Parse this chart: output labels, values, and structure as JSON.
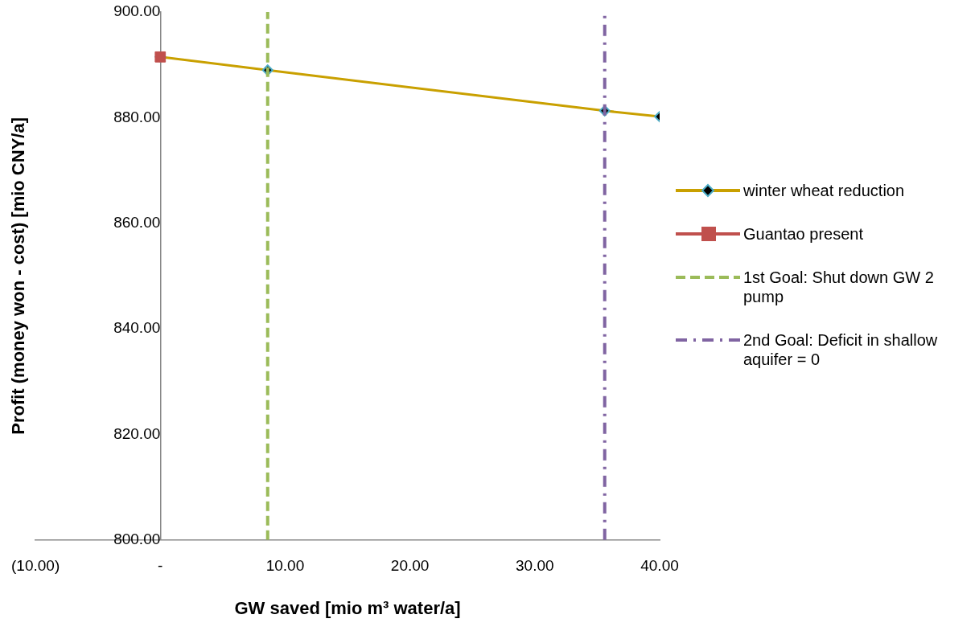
{
  "chart_data": {
    "type": "line",
    "xlabel": "GW saved [mio m³ water/a]",
    "ylabel": "Profit (money won - cost) [mio CNY/a]",
    "xlim": [
      -10,
      40
    ],
    "xticks": [
      {
        "value": -10,
        "label": "(10.00)"
      },
      {
        "value": 0,
        "label": "-"
      },
      {
        "value": 10,
        "label": "10.00"
      },
      {
        "value": 20,
        "label": "20.00"
      },
      {
        "value": 30,
        "label": "30.00"
      },
      {
        "value": 40,
        "label": "40.00"
      }
    ],
    "ylim": [
      800,
      900
    ],
    "yticks": [
      {
        "value": 800,
        "label": "800.00"
      },
      {
        "value": 820,
        "label": "820.00"
      },
      {
        "value": 840,
        "label": "840.00"
      },
      {
        "value": 860,
        "label": "860.00"
      },
      {
        "value": 880,
        "label": "880.00"
      },
      {
        "value": 900,
        "label": "900.00"
      }
    ],
    "grid": false,
    "legend": "right",
    "series": [
      {
        "name": "winter wheat reduction",
        "type": "line",
        "color": "#c9a000",
        "marker": "diamond",
        "line_style": "solid",
        "x": [
          0,
          8.6,
          35.6,
          40
        ],
        "values": [
          891.5,
          889.0,
          881.3,
          880.2
        ]
      },
      {
        "name": "Guantao present",
        "type": "scatter",
        "color": "#c0504d",
        "marker": "square",
        "x": [
          0
        ],
        "values": [
          891.5
        ]
      },
      {
        "name": "1st Goal: Shut down GW 2 pump",
        "type": "line",
        "color": "#9bbb59",
        "marker": "none",
        "line_style": "dashed",
        "x": [
          8.6,
          8.6
        ],
        "values": [
          800,
          900
        ]
      },
      {
        "name": "2nd Goal: Deficit in shallow aquifer = 0",
        "type": "line",
        "color": "#8064a2",
        "marker": "none",
        "line_style": "dotted",
        "x": [
          35.6,
          35.6
        ],
        "values": [
          800,
          900
        ]
      }
    ]
  }
}
